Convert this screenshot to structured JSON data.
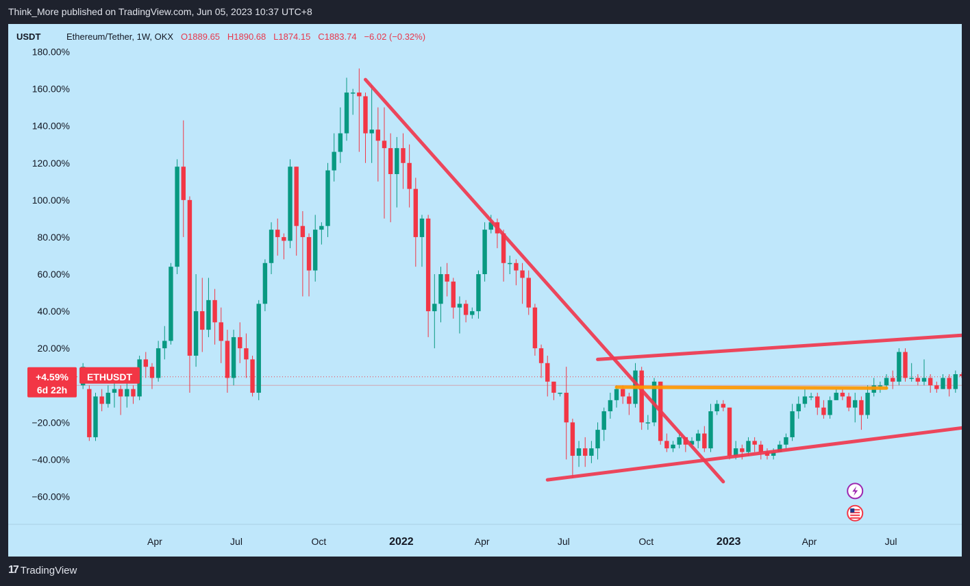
{
  "header": {
    "publisher": "Think_More published on TradingView.com, Jun 05, 2023 10:37 UTC+8"
  },
  "legend": {
    "currency": "USDT",
    "symbol": "Ethereum/Tether, 1W, OKX",
    "open": "O1889.65",
    "high": "H1890.68",
    "low": "L1874.15",
    "close": "C1883.74",
    "change": "−6.02 (−0.32%)"
  },
  "price_badge": {
    "percent": "+4.59%",
    "countdown": "6d 22h",
    "ticker": "ETHUSDT"
  },
  "footer": {
    "brand": "TradingView"
  },
  "colors": {
    "background": "#bfe7fb",
    "bull": "#089981",
    "bear": "#f23645",
    "trendline": "#f0394f",
    "support": "#ff9800"
  },
  "chart_data": {
    "type": "candlestick",
    "scale": "percent",
    "y_ticks": [
      "180.00%",
      "160.00%",
      "140.00%",
      "120.00%",
      "100.00%",
      "80.00%",
      "60.00%",
      "40.00%",
      "20.00%",
      "−20.00%",
      "−40.00%",
      "−60.00%"
    ],
    "y_tick_values": [
      180,
      160,
      140,
      120,
      100,
      80,
      60,
      40,
      20,
      -20,
      -40,
      -60
    ],
    "ylim": [
      -75,
      195
    ],
    "x_ticks": [
      {
        "label": "Apr",
        "date": "2021-04-01",
        "bold": false
      },
      {
        "label": "Jul",
        "date": "2021-07-01",
        "bold": false
      },
      {
        "label": "Oct",
        "date": "2021-10-01",
        "bold": false
      },
      {
        "label": "2022",
        "date": "2022-01-01",
        "bold": true
      },
      {
        "label": "Apr",
        "date": "2022-04-01",
        "bold": false
      },
      {
        "label": "Jul",
        "date": "2022-07-01",
        "bold": false
      },
      {
        "label": "Oct",
        "date": "2022-10-01",
        "bold": false
      },
      {
        "label": "2023",
        "date": "2023-01-01",
        "bold": true
      },
      {
        "label": "Apr",
        "date": "2023-04-01",
        "bold": false
      },
      {
        "label": "Jul",
        "date": "2023-07-01",
        "bold": false
      }
    ],
    "xlim": [
      "2021-01-04",
      "2023-09-18"
    ],
    "first_candle_date": "2021-01-11",
    "candle_interval_days": 7,
    "candles": [
      [
        0,
        10,
        -2,
        12
      ],
      [
        -2,
        -28,
        -30,
        0
      ],
      [
        -28,
        -6,
        -30,
        -4
      ],
      [
        -6,
        -10,
        -14,
        -2
      ],
      [
        -10,
        -4,
        -12,
        0
      ],
      [
        -4,
        -2,
        -12,
        2
      ],
      [
        -2,
        -6,
        -16,
        0
      ],
      [
        -6,
        -2,
        -12,
        2
      ],
      [
        -2,
        -6,
        -10,
        0
      ],
      [
        -6,
        14,
        -8,
        16
      ],
      [
        14,
        10,
        4,
        18
      ],
      [
        10,
        4,
        -2,
        12
      ],
      [
        4,
        20,
        2,
        24
      ],
      [
        20,
        24,
        14,
        32
      ],
      [
        24,
        64,
        22,
        66
      ],
      [
        64,
        118,
        60,
        122
      ],
      [
        118,
        100,
        80,
        143
      ],
      [
        100,
        16,
        -4,
        102
      ],
      [
        16,
        40,
        10,
        60
      ],
      [
        40,
        30,
        18,
        58
      ],
      [
        30,
        46,
        26,
        58
      ],
      [
        46,
        34,
        22,
        52
      ],
      [
        34,
        24,
        12,
        42
      ],
      [
        24,
        4,
        -4,
        30
      ],
      [
        4,
        26,
        0,
        30
      ],
      [
        26,
        20,
        12,
        34
      ],
      [
        20,
        14,
        4,
        28
      ],
      [
        14,
        -4,
        -6,
        16
      ],
      [
        -4,
        44,
        -8,
        46
      ],
      [
        44,
        66,
        40,
        68
      ],
      [
        66,
        84,
        60,
        88
      ],
      [
        84,
        80,
        70,
        90
      ],
      [
        80,
        78,
        68,
        82
      ],
      [
        78,
        118,
        74,
        122
      ],
      [
        118,
        86,
        70,
        118
      ],
      [
        86,
        80,
        48,
        94
      ],
      [
        80,
        62,
        48,
        82
      ],
      [
        62,
        84,
        56,
        92
      ],
      [
        84,
        86,
        76,
        88
      ],
      [
        86,
        116,
        80,
        120
      ],
      [
        116,
        126,
        110,
        136
      ],
      [
        126,
        136,
        120,
        150
      ],
      [
        136,
        158,
        132,
        166
      ],
      [
        158,
        158,
        146,
        160
      ],
      [
        158,
        156,
        126,
        171
      ],
      [
        156,
        136,
        120,
        158
      ],
      [
        136,
        138,
        120,
        162
      ],
      [
        138,
        132,
        110,
        150
      ],
      [
        132,
        128,
        90,
        150
      ],
      [
        128,
        114,
        88,
        136
      ],
      [
        114,
        128,
        96,
        134
      ],
      [
        128,
        120,
        106,
        136
      ],
      [
        120,
        106,
        96,
        130
      ],
      [
        106,
        80,
        64,
        112
      ],
      [
        80,
        90,
        64,
        92
      ],
      [
        90,
        40,
        26,
        92
      ],
      [
        40,
        44,
        20,
        60
      ],
      [
        44,
        60,
        34,
        64
      ],
      [
        60,
        56,
        48,
        66
      ],
      [
        56,
        42,
        36,
        58
      ],
      [
        42,
        44,
        28,
        48
      ],
      [
        44,
        38,
        34,
        46
      ],
      [
        38,
        40,
        36,
        42
      ],
      [
        40,
        60,
        36,
        62
      ],
      [
        60,
        84,
        56,
        88
      ],
      [
        84,
        88,
        82,
        92
      ],
      [
        88,
        82,
        74,
        90
      ],
      [
        82,
        66,
        56,
        84
      ],
      [
        66,
        66,
        60,
        70
      ],
      [
        66,
        62,
        54,
        68
      ],
      [
        62,
        58,
        44,
        66
      ],
      [
        58,
        42,
        38,
        62
      ],
      [
        42,
        20,
        16,
        44
      ],
      [
        20,
        12,
        4,
        22
      ],
      [
        12,
        2,
        -6,
        16
      ],
      [
        2,
        -4,
        -8,
        2
      ],
      [
        -4,
        -4,
        -6,
        -4
      ],
      [
        -4,
        -20,
        -40,
        10
      ],
      [
        -20,
        -38,
        -50,
        -18
      ],
      [
        -38,
        -34,
        -44,
        -30
      ],
      [
        -34,
        -38,
        -44,
        -28
      ],
      [
        -38,
        -34,
        -42,
        -30
      ],
      [
        -34,
        -24,
        -40,
        -20
      ],
      [
        -24,
        -14,
        -30,
        -12
      ],
      [
        -14,
        -8,
        -18,
        -4
      ],
      [
        -8,
        -2,
        -12,
        0
      ],
      [
        -2,
        -6,
        -10,
        0
      ],
      [
        -6,
        -10,
        -16,
        -4
      ],
      [
        -10,
        8,
        -12,
        12
      ],
      [
        8,
        -20,
        -24,
        10
      ],
      [
        -20,
        -20,
        -24,
        -16
      ],
      [
        -20,
        2,
        -22,
        4
      ],
      [
        2,
        -30,
        -32,
        2
      ],
      [
        -30,
        -34,
        -36,
        -26
      ],
      [
        -34,
        -32,
        -36,
        -30
      ],
      [
        -32,
        -28,
        -34,
        -26
      ],
      [
        -28,
        -32,
        -36,
        -28
      ],
      [
        -32,
        -30,
        -34,
        -28
      ],
      [
        -30,
        -26,
        -34,
        -24
      ],
      [
        -26,
        -34,
        -36,
        -22
      ],
      [
        -34,
        -14,
        -36,
        -10
      ],
      [
        -14,
        -10,
        -16,
        -8
      ],
      [
        -10,
        -12,
        -14,
        -8
      ],
      [
        -12,
        -38,
        -40,
        -12
      ],
      [
        -38,
        -34,
        -40,
        -30
      ],
      [
        -34,
        -36,
        -40,
        -32
      ],
      [
        -36,
        -30,
        -38,
        -28
      ],
      [
        -30,
        -32,
        -36,
        -28
      ],
      [
        -32,
        -36,
        -40,
        -30
      ],
      [
        -36,
        -38,
        -40,
        -34
      ],
      [
        -38,
        -36,
        -40,
        -34
      ],
      [
        -36,
        -32,
        -36,
        -30
      ],
      [
        -32,
        -28,
        -34,
        -26
      ],
      [
        -28,
        -14,
        -30,
        -10
      ],
      [
        -14,
        -10,
        -18,
        -6
      ],
      [
        -10,
        -6,
        -12,
        -2
      ],
      [
        -6,
        -6,
        -8,
        -4
      ],
      [
        -6,
        -12,
        -16,
        -4
      ],
      [
        -12,
        -16,
        -18,
        -8
      ],
      [
        -16,
        -8,
        -18,
        -6
      ],
      [
        -8,
        -4,
        -8,
        -2
      ],
      [
        -4,
        -6,
        -8,
        -2
      ],
      [
        -6,
        -12,
        -14,
        -4
      ],
      [
        -12,
        -8,
        -20,
        -4
      ],
      [
        -8,
        -16,
        -24,
        -6
      ],
      [
        -16,
        -4,
        -18,
        0
      ],
      [
        -4,
        0,
        -6,
        4
      ],
      [
        0,
        0,
        -4,
        2
      ],
      [
        0,
        4,
        -2,
        6
      ],
      [
        4,
        2,
        -2,
        8
      ],
      [
        2,
        18,
        0,
        20
      ],
      [
        18,
        4,
        2,
        20
      ],
      [
        4,
        4,
        2,
        12
      ],
      [
        4,
        2,
        0,
        6
      ],
      [
        2,
        4,
        0,
        14
      ],
      [
        4,
        0,
        -4,
        6
      ],
      [
        0,
        -2,
        -4,
        2
      ],
      [
        -2,
        4,
        -2,
        6
      ],
      [
        4,
        -2,
        -6,
        6
      ],
      [
        -2,
        6,
        -4,
        8
      ],
      [
        6,
        5,
        4,
        7
      ],
      [
        5,
        4.59,
        4,
        6
      ]
    ],
    "trendlines": [
      {
        "from": [
          "2021-11-22",
          165
        ],
        "to": [
          "2022-12-26",
          -52
        ]
      },
      {
        "from": [
          "2022-06-13",
          -51
        ],
        "to": [
          "2023-09-18",
          -23
        ]
      },
      {
        "from": [
          "2022-08-08",
          14
        ],
        "to": [
          "2023-09-18",
          27
        ]
      },
      {
        "from": [
          "2022-08-29",
          -1
        ],
        "to": [
          "2023-06-26",
          -1.5
        ]
      }
    ],
    "zero_line": 0,
    "last_value": 4.59,
    "annotation_icons": [
      {
        "name": "lightning-icon",
        "date": "2023-05-22",
        "value": -57
      },
      {
        "name": "flag-icon",
        "date": "2023-05-22",
        "value": -69
      }
    ]
  }
}
